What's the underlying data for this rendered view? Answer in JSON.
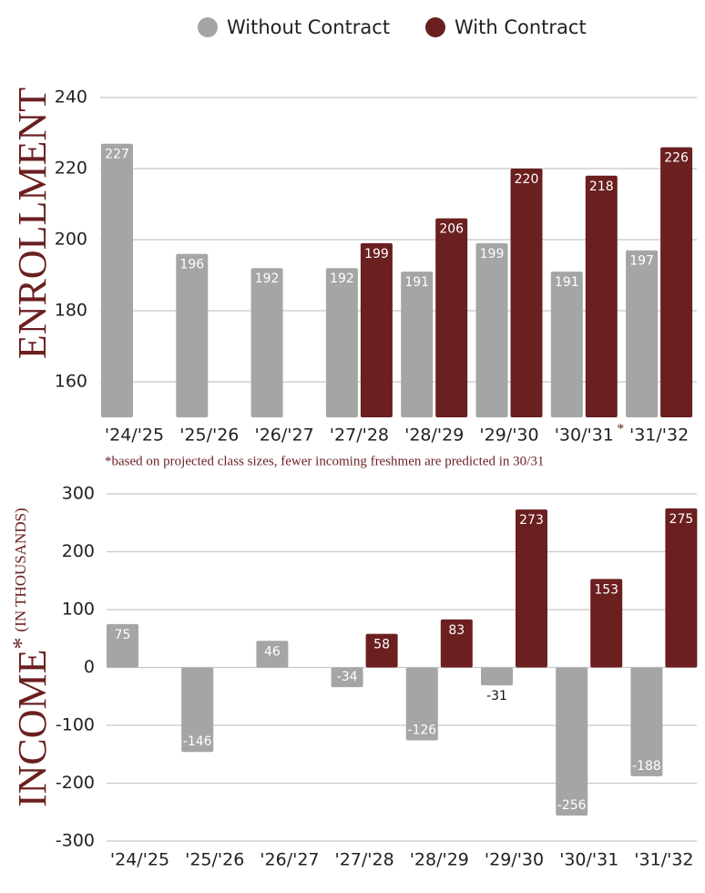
{
  "chart_data": [
    {
      "type": "bar",
      "ylabel": "ENROLLMENT",
      "categories": [
        "'24/'25",
        "'25/'26",
        "'26/'27",
        "'27/'28",
        "'28/'29",
        "'29/'30",
        "'30/'31",
        "'31/'32"
      ],
      "series": [
        {
          "name": "Without Contract",
          "color": "#a5a5a5",
          "values": [
            227,
            196,
            192,
            192,
            191,
            199,
            191,
            197
          ]
        },
        {
          "name": "With Contract",
          "color": "#6b1f1f",
          "values": [
            null,
            null,
            null,
            199,
            206,
            220,
            218,
            226
          ]
        }
      ],
      "ylim": [
        150,
        240
      ],
      "yticks": [
        160,
        180,
        200,
        220,
        240
      ],
      "grid": true,
      "category_note": {
        "category": "'30/'31",
        "text": "*"
      },
      "footnote": "*based on projected class sizes, fewer incoming freshmen are predicted in 30/31"
    },
    {
      "type": "bar",
      "ylabel": "INCOME",
      "ylabel_mark": "*",
      "ylabel_unit": "(IN THOUSANDS)",
      "categories": [
        "'24/'25",
        "'25/'26",
        "'26/'27",
        "'27/'28",
        "'28/'29",
        "'29/'30",
        "'30/'31",
        "'31/'32"
      ],
      "series": [
        {
          "color": "#a5a5a5",
          "values": [
            75,
            -146,
            46,
            -34,
            -126,
            -31,
            -256,
            -188
          ]
        },
        {
          "color": "#6b1f1f",
          "values": [
            null,
            null,
            null,
            58,
            83,
            273,
            153,
            275
          ]
        }
      ],
      "ylim": [
        -300,
        300
      ],
      "yticks": [
        -300,
        -200,
        -100,
        0,
        100,
        200,
        300
      ],
      "grid": true
    }
  ]
}
